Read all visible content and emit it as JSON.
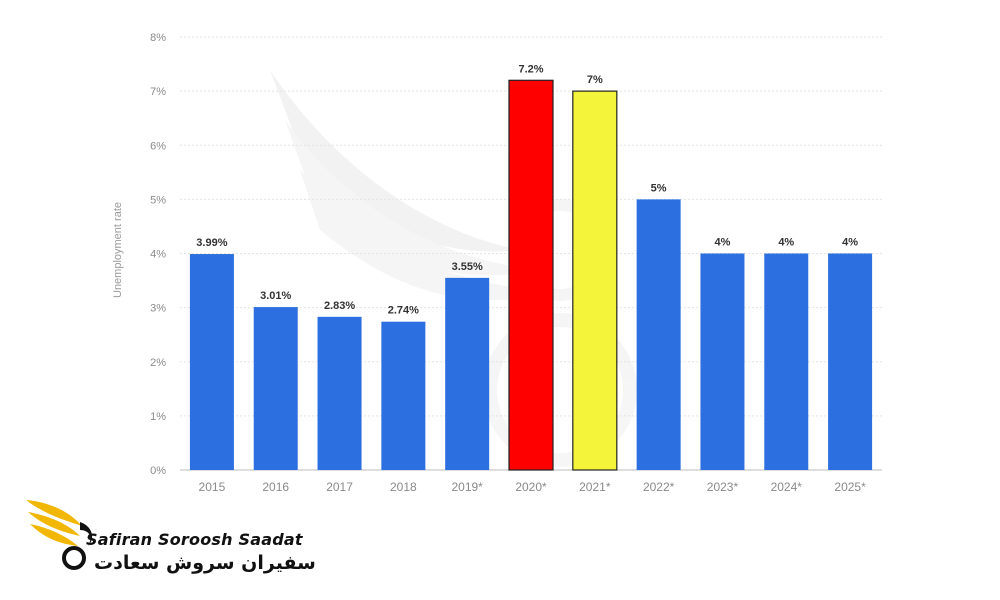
{
  "chart_data": {
    "type": "bar",
    "title": "",
    "xlabel": "",
    "ylabel": "Unemployment rate",
    "ylim": [
      0,
      8
    ],
    "y_ticks": [
      "0%",
      "1%",
      "2%",
      "3%",
      "4%",
      "5%",
      "6%",
      "7%",
      "8%"
    ],
    "grid": true,
    "categories": [
      "2015",
      "2016",
      "2017",
      "2018",
      "2019*",
      "2020*",
      "2021*",
      "2022*",
      "2023*",
      "2024*",
      "2025*"
    ],
    "values": [
      3.99,
      3.01,
      2.83,
      2.74,
      3.55,
      7.2,
      7,
      5,
      4,
      4,
      4
    ],
    "data_labels": [
      "3.99%",
      "3.01%",
      "2.83%",
      "2.74%",
      "3.55%",
      "7.2%",
      "7%",
      "5%",
      "4%",
      "4%",
      "4%"
    ],
    "bar_colors": [
      "#2c6fe0",
      "#2c6fe0",
      "#2c6fe0",
      "#2c6fe0",
      "#2c6fe0",
      "#ff0000",
      "#f4f53a",
      "#2c6fe0",
      "#2c6fe0",
      "#2c6fe0",
      "#2c6fe0"
    ]
  },
  "logo": {
    "latin": "Safiran Soroosh Saadat",
    "persian": "سفیران سروش سعادت"
  },
  "colors": {
    "grid": "#e4e4e4",
    "tick_text": "#8a8a8a",
    "label_text": "#333333",
    "logo_gold": "#f2b705",
    "logo_black": "#111111"
  }
}
